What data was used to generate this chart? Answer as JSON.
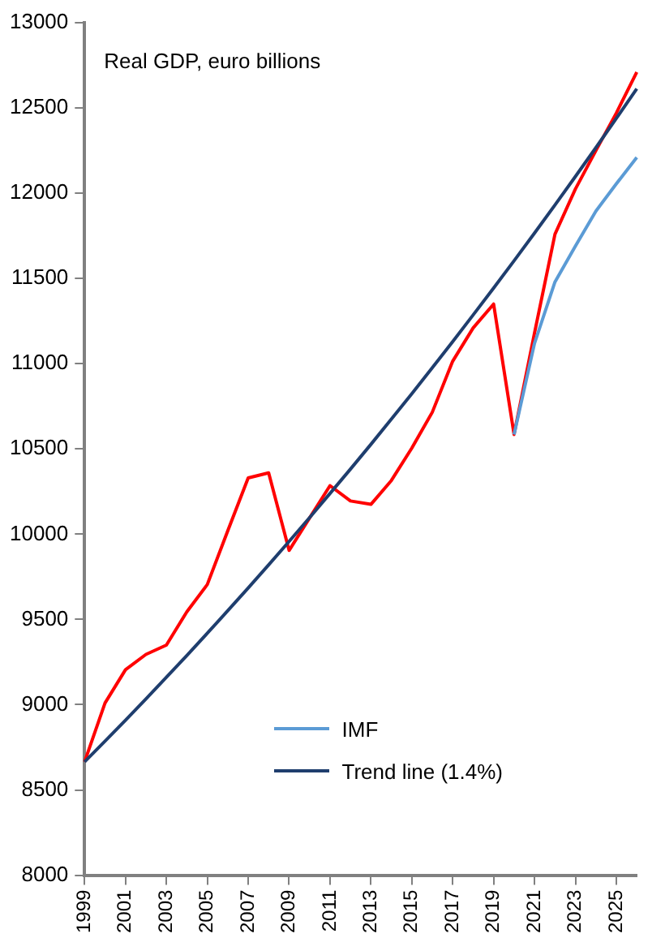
{
  "chart_data": {
    "type": "line",
    "title": "Real GDP, euro billions",
    "categories": [
      "1999",
      null,
      "2001",
      null,
      "2003",
      null,
      "2005",
      null,
      "2007",
      null,
      "2009",
      null,
      "2011",
      null,
      "2013",
      null,
      "2015",
      null,
      "2017",
      null,
      "2019",
      null,
      "2021",
      null,
      "2023",
      null,
      "2025",
      null
    ],
    "series": [
      {
        "name": "IMF",
        "color": "#5b9bd5",
        "values": [
          null,
          null,
          null,
          null,
          null,
          null,
          null,
          null,
          null,
          null,
          null,
          null,
          null,
          null,
          null,
          null,
          null,
          null,
          null,
          null,
          null,
          10585,
          11120,
          11480,
          11690,
          11895,
          12055,
          12210
        ]
      },
      {
        "name": "Trend line (1.4%)",
        "color": "#1f3e6e",
        "values": [
          8665,
          8786,
          8909,
          9034,
          9161,
          9289,
          9419,
          9551,
          9685,
          9820,
          9958,
          10097,
          10239,
          10382,
          10527,
          10675,
          10824,
          10976,
          11130,
          11286,
          11444,
          11604,
          11766,
          11931,
          12098,
          12267,
          12439,
          12613
        ]
      },
      {
        "color": "#ff0000",
        "values": [
          8665,
          9010,
          9205,
          9295,
          9350,
          9545,
          9705,
          10020,
          10330,
          10360,
          9905,
          10095,
          10285,
          10195,
          10175,
          10315,
          10505,
          10715,
          11015,
          11210,
          11350,
          10585,
          11180,
          11760,
          12025,
          12250,
          12470,
          12710
        ]
      }
    ],
    "ylim": [
      8000,
      13000
    ],
    "yticks": [
      8000,
      8500,
      9000,
      9500,
      10000,
      10500,
      11000,
      11500,
      12000,
      12500,
      13000
    ],
    "grid": false,
    "legend": "bottom right",
    "marker": "none",
    "line_style": "solid"
  }
}
